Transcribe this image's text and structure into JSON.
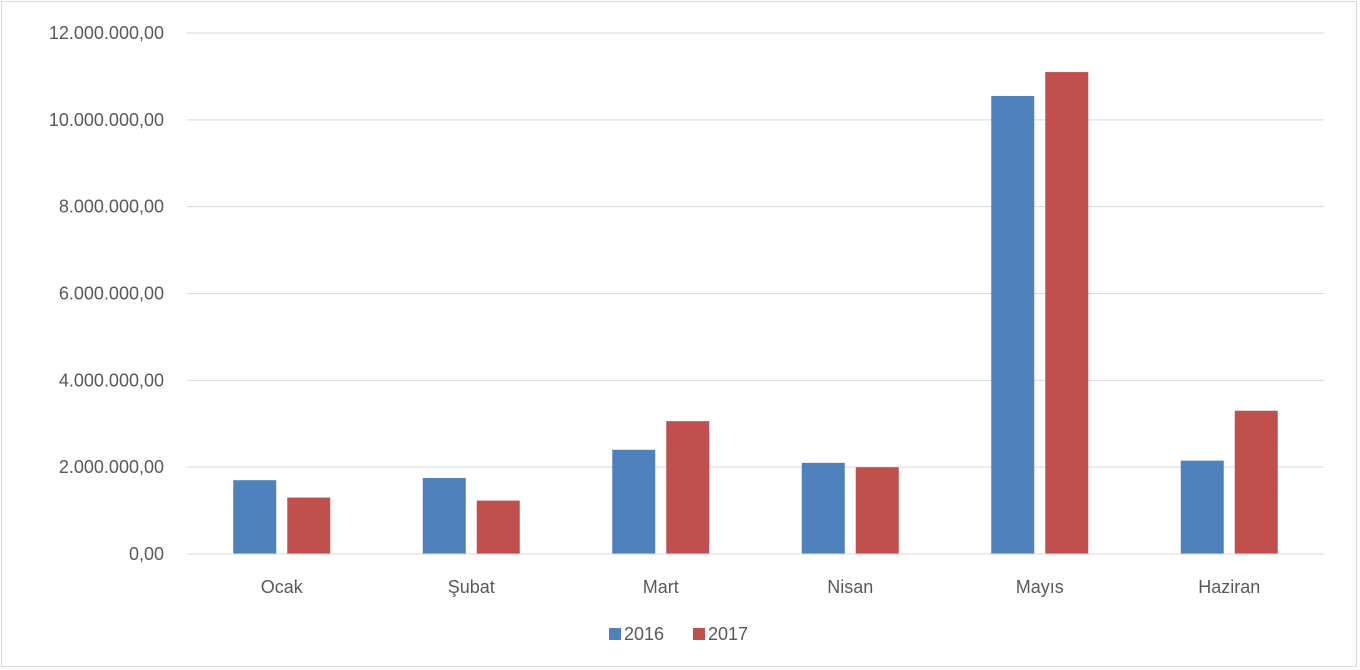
{
  "chart_data": {
    "type": "bar",
    "title": "",
    "xlabel": "",
    "ylabel": "",
    "categories": [
      "Ocak",
      "Şubat",
      "Mart",
      "Nisan",
      "Mayıs",
      "Haziran"
    ],
    "series": [
      {
        "name": "2016",
        "color": "#4F81BD",
        "values": [
          1700000,
          1750000,
          2400000,
          2100000,
          10550000,
          2150000
        ]
      },
      {
        "name": "2017",
        "color": "#C0504D",
        "values": [
          1300000,
          1230000,
          3060000,
          2000000,
          11100000,
          3300000
        ]
      }
    ],
    "ylim": [
      0,
      12000000
    ],
    "yticks": [
      0,
      2000000,
      4000000,
      6000000,
      8000000,
      10000000,
      12000000
    ],
    "ytick_labels": [
      "0,00",
      "2.000.000,00",
      "4.000.000,00",
      "6.000.000,00",
      "8.000.000,00",
      "10.000.000,00",
      "12.000.000,00"
    ],
    "grid": true,
    "legend_position": "bottom"
  }
}
